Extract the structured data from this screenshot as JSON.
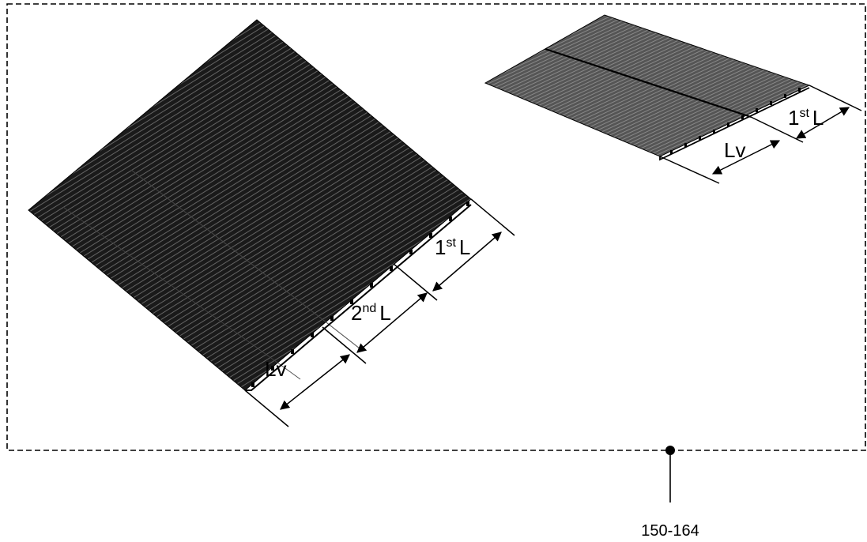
{
  "figure": {
    "reference_numeral": "150-164",
    "large_panel": {
      "labels": {
        "first": "1",
        "first_sup": "st",
        "first_tail": "L",
        "second": "2",
        "second_sup": "nd",
        "second_tail": "L",
        "valley": "Lv"
      }
    },
    "small_panel": {
      "labels": {
        "first": "1",
        "first_sup": "st",
        "first_tail": "L",
        "valley": "Lv"
      }
    },
    "colors": {
      "line": "#000000",
      "panel_fill": "#222222",
      "small_panel_fill": "#555555",
      "background": "#ffffff"
    }
  }
}
